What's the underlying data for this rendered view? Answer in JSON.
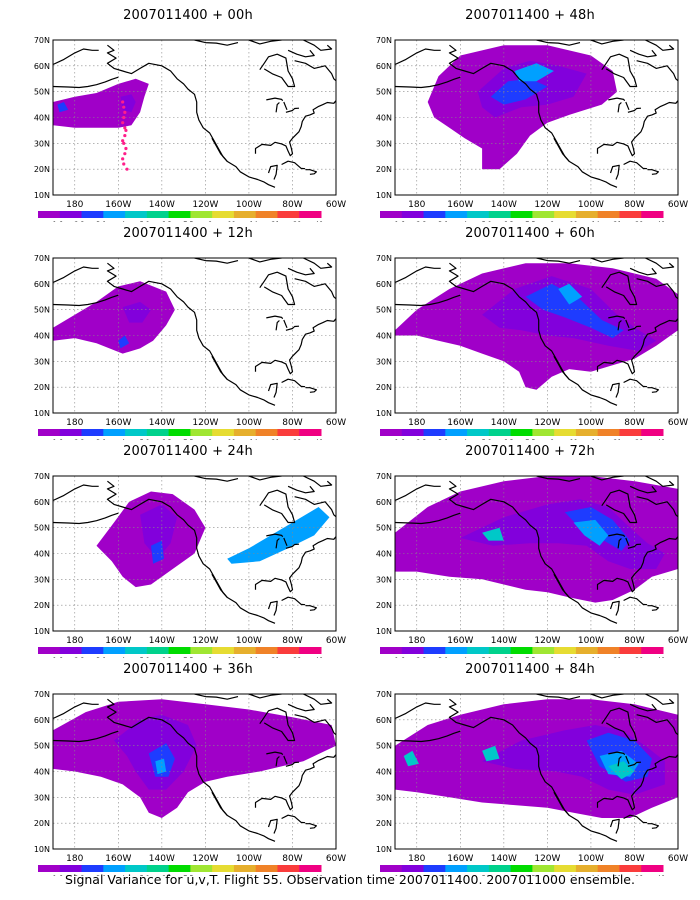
{
  "figure": {
    "caption": "Signal Variance for u,v,T. Flight 55. Observation time 2007011400. 2007011000 ensemble."
  },
  "axes": {
    "lat_labels": [
      "10N",
      "20N",
      "30N",
      "40N",
      "50N",
      "60N",
      "70N"
    ],
    "lon_labels": [
      "180",
      "160W",
      "140W",
      "120W",
      "100W",
      "80W",
      "60W"
    ]
  },
  "colorbar": {
    "labels": [
      "1.6",
      "2.2",
      "3.1",
      "4",
      "5.1",
      "6.3",
      "7.5",
      "9",
      "11",
      "14",
      "21",
      "29",
      "40"
    ],
    "colors": [
      "#a000c8",
      "#8200dc",
      "#1e3cff",
      "#00a0ff",
      "#00c8c8",
      "#00d28c",
      "#00dc00",
      "#a0e632",
      "#e6dc32",
      "#e6af2d",
      "#f08228",
      "#fa3c3c",
      "#f00082"
    ]
  },
  "panels": [
    {
      "title": "2007011400 + 00h",
      "lead": "00h"
    },
    {
      "title": "2007011400 + 48h",
      "lead": "48h"
    },
    {
      "title": "2007011400 + 12h",
      "lead": "12h"
    },
    {
      "title": "2007011400 + 60h",
      "lead": "60h"
    },
    {
      "title": "2007011400 + 24h",
      "lead": "24h"
    },
    {
      "title": "2007011400 + 72h",
      "lead": "72h"
    },
    {
      "title": "2007011400 + 36h",
      "lead": "36h"
    },
    {
      "title": "2007011400 + 84h",
      "lead": "84h"
    }
  ],
  "observations": {
    "lon": [
      -158,
      -157.5,
      -157,
      -157.5,
      -158,
      -157,
      -156.5,
      -157,
      -158,
      -157.5,
      -156.5,
      -157,
      -158,
      -157.5,
      -156
    ],
    "lat": [
      46,
      44,
      42,
      40,
      38,
      36,
      35,
      33,
      31,
      30,
      28,
      26,
      24,
      22,
      20
    ]
  }
}
